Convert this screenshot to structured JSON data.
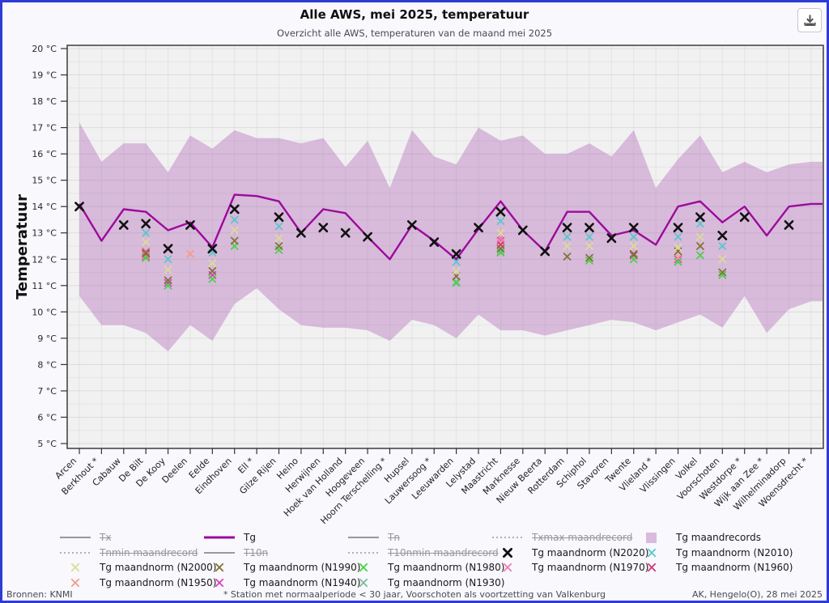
{
  "page": {
    "title": "Alle AWS, mei 2025, temperatuur",
    "subtitle": "Overzicht alle AWS, temperaturen van de maand mei 2025",
    "footer_left": "Bronnen: KNMI",
    "footer_center": "* Station met normaalperiode < 30 jaar, Voorschoten als voortzetting van Valkenburg",
    "footer_right": "AK, Hengelo(O), 28 mei 2025"
  },
  "icons": {
    "download": "⭳"
  },
  "axes": {
    "y_title": "Temperatuur",
    "y_unit": "°C",
    "y_min": 5,
    "y_max": 20,
    "y_tick_step": 1
  },
  "colors": {
    "page_border": "#2e3cd4",
    "plot_bg": "#f1f1f1",
    "band": "#d5b4d8",
    "tg_line": "#9c0a9c",
    "struck_gray": "#999999"
  },
  "chart_data": {
    "type": "area+line+scatter",
    "title": "Alle AWS, mei 2025, temperatuur",
    "subtitle": "Overzicht alle AWS, temperaturen van de maand mei 2025",
    "xlabel": "",
    "ylabel": "Temperatuur",
    "ylim": [
      5,
      20
    ],
    "grid": true,
    "legend_position": "bottom",
    "categories": [
      "Arcen",
      "Berkhout *",
      "Cabauw",
      "De Bilt",
      "De Kooy",
      "Deelen",
      "Eelde",
      "Eindhoven",
      "Ell *",
      "Gilze Rijen",
      "Heino",
      "Herwijnen",
      "Hoek van Holland",
      "Hoogeveen",
      "Hoorn Terschelling *",
      "Hupsel",
      "Lauwersoog *",
      "Leeuwarden",
      "Lelystad",
      "Maastricht",
      "Marknesse",
      "Nieuw Beerta",
      "Rotterdam",
      "Schiphol",
      "Stavoren",
      "Twente",
      "Vlieland *",
      "Vlissingen",
      "Volkel",
      "Voorschoten",
      "Westdorpe *",
      "Wijk aan Zee *",
      "Wilhelminadorp",
      "Woensdrecht *"
    ],
    "series": [
      {
        "name": "Tg maandrecords",
        "type": "band",
        "color": "#d5b4d8",
        "upper": [
          17.2,
          15.7,
          16.4,
          16.4,
          15.3,
          16.7,
          16.2,
          16.9,
          16.6,
          16.6,
          16.4,
          16.6,
          15.5,
          16.5,
          14.7,
          16.9,
          15.9,
          15.6,
          17.0,
          16.5,
          16.7,
          16.0,
          16.0,
          16.4,
          15.9,
          16.9,
          14.7,
          15.8,
          16.7,
          15.3,
          15.7,
          15.3,
          15.6,
          15.7
        ],
        "lower": [
          10.6,
          9.5,
          9.5,
          9.2,
          8.5,
          9.5,
          8.9,
          10.3,
          10.9,
          10.1,
          9.5,
          9.4,
          9.4,
          9.3,
          8.9,
          9.7,
          9.5,
          9.0,
          9.9,
          9.3,
          9.3,
          9.1,
          9.3,
          9.5,
          9.7,
          9.6,
          9.3,
          9.6,
          9.9,
          9.4,
          10.6,
          9.2,
          10.1,
          10.4
        ]
      },
      {
        "name": "Tg",
        "type": "line",
        "color": "#9c0a9c",
        "values": [
          14.1,
          12.7,
          13.9,
          13.8,
          13.1,
          13.4,
          12.45,
          14.45,
          14.4,
          14.2,
          13.0,
          13.9,
          13.75,
          12.85,
          12.0,
          13.3,
          12.7,
          12.0,
          13.15,
          14.2,
          13.1,
          12.3,
          13.8,
          13.8,
          12.9,
          13.1,
          12.55,
          14.0,
          14.2,
          13.4,
          14.0,
          12.9,
          14.0,
          14.1
        ]
      },
      {
        "name": "Tg maandnorm (N1930)",
        "type": "scatter",
        "color": "#7cba98",
        "values": [
          null,
          null,
          null,
          12.1,
          null,
          null,
          null,
          null,
          null,
          null,
          null,
          null,
          null,
          null,
          null,
          null,
          null,
          11.15,
          null,
          12.3,
          null,
          null,
          null,
          null,
          null,
          null,
          null,
          null,
          null,
          null,
          null,
          null,
          null,
          null
        ]
      },
      {
        "name": "Tg maandnorm (N1940)",
        "type": "scatter",
        "color": "#da3cc6",
        "values": [
          null,
          null,
          null,
          12.1,
          11.1,
          null,
          11.4,
          null,
          null,
          null,
          null,
          null,
          null,
          null,
          null,
          null,
          null,
          null,
          null,
          12.7,
          null,
          null,
          null,
          null,
          null,
          null,
          null,
          12.0,
          null,
          null,
          null,
          null,
          null,
          null
        ]
      },
      {
        "name": "Tg maandnorm (N1950)",
        "type": "scatter",
        "color": "#f49b8b",
        "values": [
          null,
          null,
          null,
          12.15,
          null,
          12.2,
          null,
          null,
          null,
          null,
          null,
          null,
          null,
          null,
          null,
          null,
          null,
          null,
          null,
          12.65,
          null,
          null,
          null,
          null,
          null,
          null,
          null,
          12.05,
          null,
          null,
          null,
          null,
          null,
          null
        ]
      },
      {
        "name": "Tg maandnorm (N1960)",
        "type": "scatter",
        "color": "#cf3779",
        "values": [
          null,
          null,
          null,
          12.2,
          null,
          null,
          null,
          null,
          null,
          null,
          null,
          null,
          null,
          null,
          null,
          null,
          null,
          null,
          null,
          12.55,
          null,
          null,
          null,
          null,
          null,
          12.15,
          null,
          null,
          null,
          null,
          null,
          null,
          null,
          null
        ]
      },
      {
        "name": "Tg maandnorm (N1970)",
        "type": "scatter",
        "color": "#ee7ab5",
        "values": [
          null,
          null,
          null,
          12.3,
          null,
          null,
          null,
          null,
          null,
          null,
          null,
          null,
          null,
          null,
          null,
          null,
          null,
          null,
          null,
          12.8,
          null,
          null,
          null,
          null,
          null,
          null,
          null,
          null,
          null,
          null,
          null,
          null,
          null,
          null
        ]
      },
      {
        "name": "Tg maandnorm (N1980)",
        "type": "scatter",
        "color": "#44d344",
        "values": [
          null,
          null,
          null,
          12.05,
          11.0,
          null,
          11.25,
          12.5,
          null,
          12.35,
          null,
          null,
          null,
          null,
          null,
          null,
          null,
          11.1,
          null,
          12.25,
          null,
          null,
          null,
          11.95,
          null,
          12.0,
          null,
          11.9,
          12.15,
          11.4,
          null,
          null,
          null,
          null
        ]
      },
      {
        "name": "Tg maandnorm (N1990)",
        "type": "scatter",
        "color": "#80722f",
        "values": [
          null,
          null,
          null,
          12.25,
          11.2,
          null,
          11.55,
          12.7,
          null,
          12.5,
          null,
          null,
          null,
          null,
          null,
          null,
          null,
          11.35,
          null,
          12.4,
          null,
          null,
          12.1,
          12.05,
          null,
          12.2,
          null,
          12.3,
          12.5,
          11.5,
          null,
          null,
          null,
          null
        ]
      },
      {
        "name": "Tg maandnorm (N2000)",
        "type": "scatter",
        "color": "#dcdc96",
        "values": [
          null,
          null,
          null,
          12.65,
          11.6,
          null,
          11.85,
          13.1,
          null,
          12.8,
          null,
          null,
          null,
          null,
          null,
          null,
          null,
          11.55,
          null,
          13.0,
          null,
          null,
          12.5,
          12.5,
          null,
          12.5,
          null,
          12.45,
          12.85,
          12.0,
          null,
          null,
          null,
          null
        ]
      },
      {
        "name": "Tg maandnorm (N2010)",
        "type": "scatter",
        "color": "#55c8cc",
        "values": [
          null,
          null,
          null,
          13.0,
          12.0,
          null,
          12.25,
          13.5,
          null,
          13.25,
          null,
          null,
          null,
          null,
          null,
          null,
          null,
          11.9,
          null,
          13.45,
          null,
          null,
          12.85,
          12.85,
          null,
          12.85,
          null,
          12.85,
          13.35,
          12.5,
          null,
          null,
          null,
          null
        ]
      },
      {
        "name": "Tg maandnorm (N2020)",
        "type": "scatter",
        "color": "#111111",
        "bold": true,
        "values": [
          14.0,
          null,
          13.3,
          13.35,
          12.4,
          13.3,
          12.4,
          13.9,
          null,
          13.6,
          13.0,
          13.2,
          13.0,
          12.85,
          null,
          13.3,
          12.65,
          12.2,
          13.2,
          13.8,
          13.1,
          12.3,
          13.2,
          13.2,
          12.8,
          13.2,
          null,
          13.2,
          13.6,
          12.9,
          13.6,
          null,
          13.3,
          null
        ]
      }
    ]
  },
  "legend": {
    "items": [
      {
        "label": "Tx",
        "marker": "line",
        "color": "#999999",
        "struck": true
      },
      {
        "label": "Tg",
        "marker": "line",
        "color": "#9c0a9c",
        "struck": false
      },
      {
        "label": "Tn",
        "marker": "line",
        "color": "#999999",
        "struck": true
      },
      {
        "label": "Txmax maandrecord",
        "marker": "dotted",
        "color": "#999999",
        "struck": true
      },
      {
        "label": "Tg maandrecords",
        "marker": "square",
        "color": "#d9bbdc",
        "struck": false
      },
      {
        "label": "Tnmin maandrecord",
        "marker": "dotted",
        "color": "#999999",
        "struck": true
      },
      {
        "label": "T10n",
        "marker": "line",
        "color": "#999999",
        "struck": true
      },
      {
        "label": "T10nmin maandrecord",
        "marker": "dotted",
        "color": "#999999",
        "struck": true
      },
      {
        "label": "Tg maandnorm (N2020)",
        "marker": "cross-bold",
        "color": "#111111",
        "struck": false
      },
      {
        "label": "Tg maandnorm (N2010)",
        "marker": "cross",
        "color": "#55c8cc",
        "struck": false
      },
      {
        "label": "Tg maandnorm (N2000)",
        "marker": "cross",
        "color": "#dcdc96",
        "struck": false
      },
      {
        "label": "Tg maandnorm (N1990)",
        "marker": "cross",
        "color": "#80722f",
        "struck": false
      },
      {
        "label": "Tg maandnorm (N1980)",
        "marker": "cross",
        "color": "#44d344",
        "struck": false
      },
      {
        "label": "Tg maandnorm (N1970)",
        "marker": "cross",
        "color": "#ee7ab5",
        "struck": false
      },
      {
        "label": "Tg maandnorm (N1960)",
        "marker": "cross",
        "color": "#cf3779",
        "struck": false
      },
      {
        "label": "Tg maandnorm (N1950)",
        "marker": "cross",
        "color": "#f49b8b",
        "struck": false
      },
      {
        "label": "Tg maandnorm (N1940)",
        "marker": "cross",
        "color": "#da3cc6",
        "struck": false
      },
      {
        "label": "Tg maandnorm (N1930)",
        "marker": "cross",
        "color": "#7cba98",
        "struck": false
      }
    ]
  }
}
